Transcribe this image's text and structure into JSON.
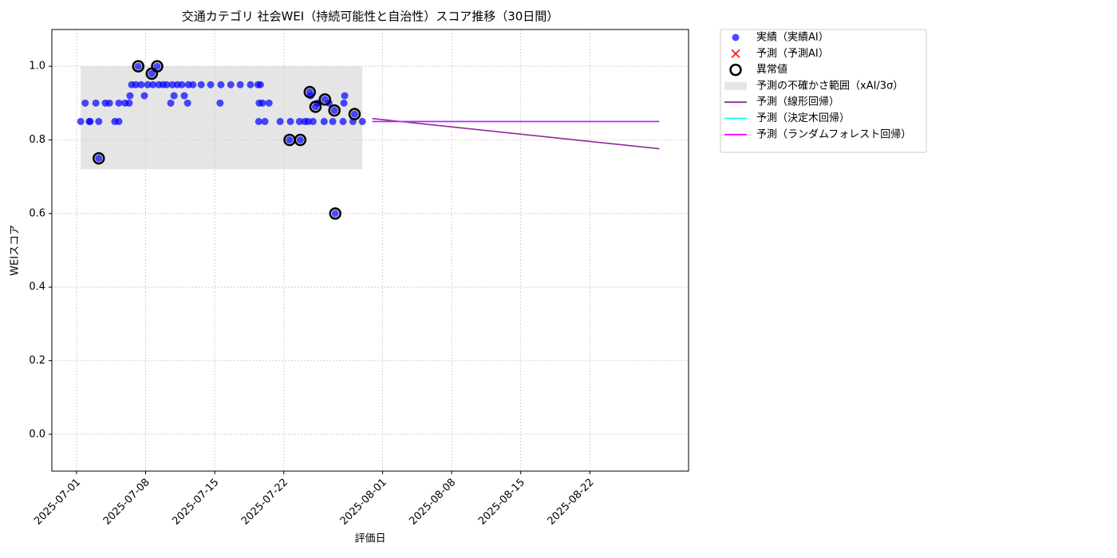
{
  "chart_data": {
    "type": "scatter",
    "title": "交通カテゴリ 社会WEI（持続可能性と自治性）スコア推移（30日間）",
    "x_label": "評価日",
    "y_label": "WEIスコア",
    "xlim": [
      "2025-06-28 12:00",
      "2025-09-01 00:00"
    ],
    "ylim": [
      -0.1,
      1.1
    ],
    "xticks": [
      "2025-07-01",
      "2025-07-08",
      "2025-07-15",
      "2025-07-22",
      "2025-08-01",
      "2025-08-08",
      "2025-08-15",
      "2025-08-22"
    ],
    "yticks": [
      {
        "value": 0,
        "label": "0.0"
      },
      0.2,
      0.4,
      0.6,
      0.8,
      {
        "value": 1,
        "label": "1.0"
      }
    ],
    "grid": true,
    "legend": "outside-upper-right",
    "series": [
      {
        "name": "実績（実績AI）",
        "kind": "scatter",
        "marker": "dot",
        "color": "#0000ff",
        "x": [
          "2025-07-01 10:00",
          "2025-07-02 07:00",
          "2025-07-01 21:00",
          "2025-07-02 09:00",
          "2025-07-02 23:00",
          "2025-07-03 06:00",
          "2025-07-03 06:00",
          "2025-07-03 22:00",
          "2025-07-04 08:00",
          "2025-07-04 21:00",
          "2025-07-05 07:00",
          "2025-07-05 07:00",
          "2025-07-05 22:00",
          "2025-07-06 08:00",
          "2025-07-06 10:00",
          "2025-07-06 14:00",
          "2025-07-07 00:00",
          "2025-07-07 06:00",
          "2025-07-07 13:00",
          "2025-07-07 21:00",
          "2025-07-08 05:00",
          "2025-07-08 15:00",
          "2025-07-08 18:00",
          "2025-07-09 04:00",
          "2025-07-09 08:00",
          "2025-07-09 18:00",
          "2025-07-10 03:00",
          "2025-07-10 13:00",
          "2025-07-10 17:00",
          "2025-07-10 21:00",
          "2025-07-11 05:00",
          "2025-07-11 16:00",
          "2025-07-11 22:00",
          "2025-07-12 06:00",
          "2025-07-12 08:00",
          "2025-07-12 19:00",
          "2025-07-13 15:00",
          "2025-07-14 14:00",
          "2025-07-15 13:00",
          "2025-07-15 15:00",
          "2025-07-16 15:00",
          "2025-07-17 14:00",
          "2025-07-18 15:00",
          "2025-07-19 09:00",
          "2025-07-19 15:00",
          "2025-07-19 12:00",
          "2025-07-19 20:00",
          "2025-07-19 11:00",
          "2025-07-20 02:00",
          "2025-07-20 12:00",
          "2025-07-21 15:00",
          "2025-07-22 14:00",
          "2025-07-22 16:00",
          "2025-07-23 14:00",
          "2025-07-23 16:00",
          "2025-07-24 03:00",
          "2025-07-24 11:00",
          "2025-07-24 15:00",
          "2025-07-24 17:00",
          "2025-07-24 23:00",
          "2025-07-25 05:00",
          "2025-07-25 10:00",
          "2025-07-26 02:00",
          "2025-07-26 04:00",
          "2025-07-26 14:00",
          "2025-07-26 23:00",
          "2025-07-27 03:00",
          "2025-07-27 05:00",
          "2025-07-28 00:00",
          "2025-07-28 02:00",
          "2025-07-28 04:00",
          "2025-07-29 00:00",
          "2025-07-29 04:00",
          "2025-07-29 23:00"
        ],
        "values": [
          0.85,
          0.85,
          0.9,
          0.85,
          0.9,
          0.85,
          0.75,
          0.9,
          0.9,
          0.85,
          0.85,
          0.9,
          0.9,
          0.9,
          0.92,
          0.95,
          0.95,
          1.0,
          0.95,
          0.92,
          0.95,
          0.98,
          0.95,
          1.0,
          0.95,
          0.95,
          0.95,
          0.9,
          0.95,
          0.92,
          0.95,
          0.95,
          0.92,
          0.9,
          0.95,
          0.95,
          0.95,
          0.95,
          0.9,
          0.95,
          0.95,
          0.95,
          0.95,
          0.95,
          0.95,
          0.9,
          0.9,
          0.85,
          0.85,
          0.9,
          0.85,
          0.8,
          0.85,
          0.85,
          0.8,
          0.85,
          0.85,
          0.93,
          0.92,
          0.85,
          0.89,
          0.9,
          0.85,
          0.91,
          0.9,
          0.85,
          0.88,
          0.6,
          0.85,
          0.9,
          0.92,
          0.85,
          0.87,
          0.85
        ]
      },
      {
        "name": "予測（予測AI）",
        "kind": "scatter",
        "marker": "x",
        "color": "#ff0000",
        "x": [],
        "values": []
      },
      {
        "name": "異常値",
        "kind": "scatter",
        "marker": "ring",
        "color": "#000000",
        "x": [
          "2025-07-03 06:00",
          "2025-07-07 06:00",
          "2025-07-08 15:00",
          "2025-07-09 04:00",
          "2025-07-22 14:00",
          "2025-07-23 16:00",
          "2025-07-24 15:00",
          "2025-07-25 05:00",
          "2025-07-26 04:00",
          "2025-07-27 03:00",
          "2025-07-27 05:00",
          "2025-07-29 04:00"
        ],
        "values": [
          0.75,
          1.0,
          0.98,
          1.0,
          0.8,
          0.8,
          0.93,
          0.89,
          0.91,
          0.88,
          0.6,
          0.87
        ]
      },
      {
        "name": "予測の不確かさ範囲（xAI/3σ）",
        "kind": "band",
        "color": "#d3d3d3",
        "x": [
          "2025-07-01 10:00",
          "2025-07-29 23:00"
        ],
        "values": [
          1.0,
          1.0
        ],
        "lower": [
          0.72,
          0.72
        ]
      },
      {
        "name": "予測（線形回帰）",
        "kind": "line",
        "color": "#93279c",
        "x": [
          "2025-07-30 23:00",
          "2025-08-29 01:00"
        ],
        "values": [
          0.858,
          0.776
        ]
      },
      {
        "name": "予測（決定木回帰）",
        "kind": "line",
        "color": "#00ffff",
        "x": [
          "2025-07-30 23:00",
          "2025-08-29 01:00"
        ],
        "values": [
          0.85,
          0.85
        ]
      },
      {
        "name": "予測（ランダムフォレスト回帰）",
        "kind": "line",
        "color": "#ff00ff",
        "x": [
          "2025-07-30 23:00",
          "2025-08-29 01:00"
        ],
        "values": [
          0.85,
          0.85
        ]
      }
    ]
  }
}
